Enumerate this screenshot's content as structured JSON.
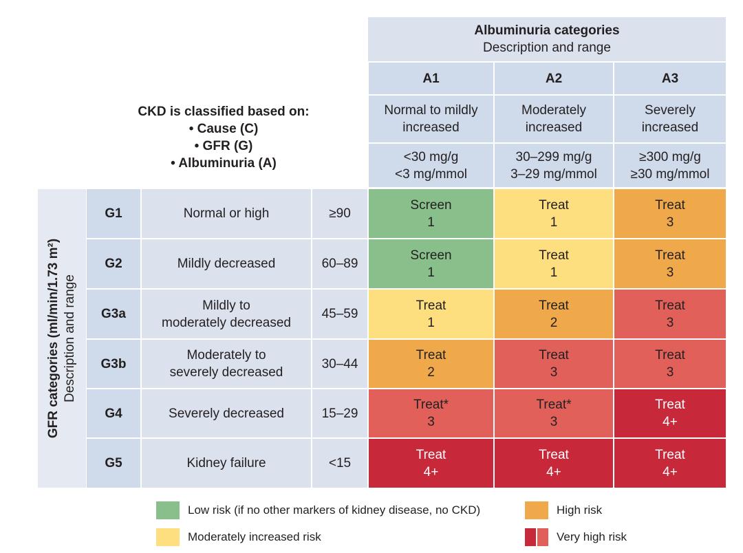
{
  "colors": {
    "green": "#88bf8a",
    "yellow": "#fddf7f",
    "orange": "#f0a94a",
    "red": "#e2605a",
    "darkred": "#c8293a"
  },
  "classify": {
    "title": "CKD is classified based on:",
    "items": [
      "• Cause (C)",
      "• GFR (G)",
      "• Albuminuria (A)"
    ]
  },
  "albuminuria": {
    "title": "Albuminuria categories",
    "subtitle": "Description and range",
    "cols": [
      {
        "code": "A1",
        "desc": [
          "Normal to mildly",
          "increased"
        ],
        "range": [
          "<30 mg/g",
          "<3 mg/mmol"
        ]
      },
      {
        "code": "A2",
        "desc": [
          "Moderately",
          "increased"
        ],
        "range": [
          "30–299 mg/g",
          "3–29 mg/mmol"
        ]
      },
      {
        "code": "A3",
        "desc": [
          "Severely",
          "increased"
        ],
        "range": [
          "≥300 mg/g",
          "≥30 mg/mmol"
        ]
      }
    ]
  },
  "gfr": {
    "title": "GFR categories (ml/min/1.73 m²)",
    "subtitle": "Description and range",
    "rows": [
      {
        "code": "G1",
        "desc": [
          "Normal or high"
        ],
        "range": "≥90",
        "cells": [
          {
            "a": "Screen",
            "b": "1",
            "c": "green"
          },
          {
            "a": "Treat",
            "b": "1",
            "c": "yellow"
          },
          {
            "a": "Treat",
            "b": "3",
            "c": "orange"
          }
        ]
      },
      {
        "code": "G2",
        "desc": [
          "Mildly decreased"
        ],
        "range": "60–89",
        "cells": [
          {
            "a": "Screen",
            "b": "1",
            "c": "green"
          },
          {
            "a": "Treat",
            "b": "1",
            "c": "yellow"
          },
          {
            "a": "Treat",
            "b": "3",
            "c": "orange"
          }
        ]
      },
      {
        "code": "G3a",
        "desc": [
          "Mildly to",
          "moderately decreased"
        ],
        "range": "45–59",
        "cells": [
          {
            "a": "Treat",
            "b": "1",
            "c": "yellow"
          },
          {
            "a": "Treat",
            "b": "2",
            "c": "orange"
          },
          {
            "a": "Treat",
            "b": "3",
            "c": "red"
          }
        ]
      },
      {
        "code": "G3b",
        "desc": [
          "Moderately to",
          "severely decreased"
        ],
        "range": "30–44",
        "cells": [
          {
            "a": "Treat",
            "b": "2",
            "c": "orange"
          },
          {
            "a": "Treat",
            "b": "3",
            "c": "red"
          },
          {
            "a": "Treat",
            "b": "3",
            "c": "red"
          }
        ]
      },
      {
        "code": "G4",
        "desc": [
          "Severely decreased"
        ],
        "range": "15–29",
        "cells": [
          {
            "a": "Treat*",
            "b": "3",
            "c": "red"
          },
          {
            "a": "Treat*",
            "b": "3",
            "c": "red"
          },
          {
            "a": "Treat",
            "b": "4+",
            "c": "darkred"
          }
        ]
      },
      {
        "code": "G5",
        "desc": [
          "Kidney failure"
        ],
        "range": "<15",
        "cells": [
          {
            "a": "Treat",
            "b": "4+",
            "c": "darkred"
          },
          {
            "a": "Treat",
            "b": "4+",
            "c": "darkred"
          },
          {
            "a": "Treat",
            "b": "4+",
            "c": "darkred"
          }
        ]
      }
    ]
  },
  "legend": [
    {
      "label": "Low risk (if no other markers of kidney disease, no CKD)",
      "colors": [
        "green"
      ]
    },
    {
      "label": "High risk",
      "colors": [
        "orange"
      ]
    },
    {
      "label": "Moderately increased risk",
      "colors": [
        "yellow"
      ]
    },
    {
      "label": "Very high risk",
      "colors": [
        "darkred",
        "red"
      ]
    }
  ]
}
